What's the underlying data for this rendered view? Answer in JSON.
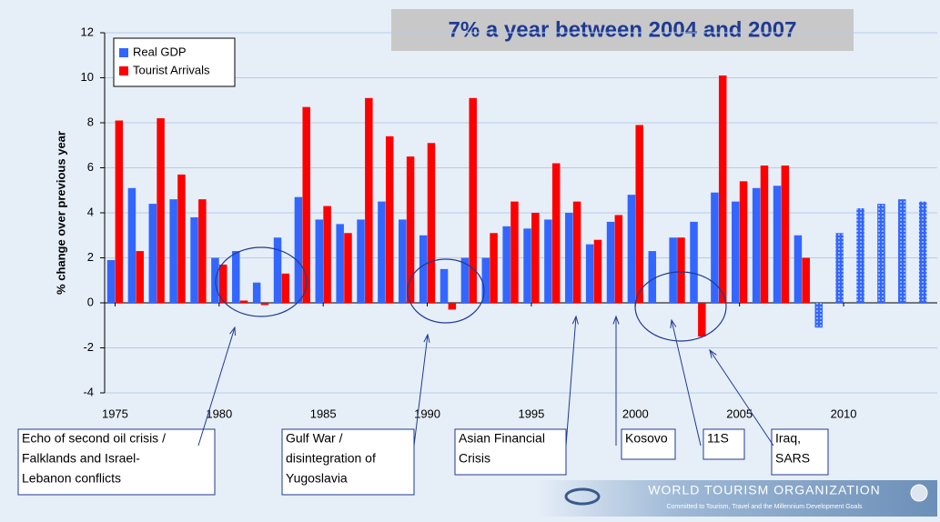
{
  "chart_data": {
    "type": "bar",
    "title": "7% a year between 2004 and 2007",
    "y_label": "% change over previous year",
    "x": [
      1975,
      1976,
      1977,
      1978,
      1979,
      1980,
      1981,
      1982,
      1983,
      1984,
      1985,
      1986,
      1987,
      1988,
      1989,
      1990,
      1991,
      1992,
      1993,
      1994,
      1995,
      1996,
      1997,
      1998,
      1999,
      2000,
      2001,
      2002,
      2003,
      2004,
      2005,
      2006,
      2007,
      2008,
      2009,
      2010,
      2011,
      2012,
      2013,
      2014
    ],
    "series": [
      {
        "name": "Real GDP",
        "color": "#3366ff",
        "dotted_from": 2009,
        "values": [
          1.9,
          5.1,
          4.4,
          4.6,
          3.8,
          2.0,
          2.3,
          0.9,
          2.9,
          4.7,
          3.7,
          3.5,
          3.7,
          4.5,
          3.7,
          3.0,
          1.5,
          2.0,
          2.0,
          3.4,
          3.3,
          3.7,
          4.0,
          2.6,
          3.6,
          4.8,
          2.3,
          2.9,
          3.6,
          4.9,
          4.5,
          5.1,
          5.2,
          3.0,
          -1.1,
          3.1,
          4.2,
          4.4,
          4.6,
          4.5
        ]
      },
      {
        "name": "Tourist Arrivals",
        "color": "#ff0000",
        "values": [
          8.1,
          2.3,
          8.2,
          5.7,
          4.6,
          1.7,
          0.1,
          -0.1,
          1.3,
          8.7,
          4.3,
          3.1,
          9.1,
          7.4,
          6.5,
          7.1,
          -0.3,
          9.1,
          3.1,
          4.5,
          4.0,
          6.2,
          4.5,
          2.8,
          3.9,
          7.9,
          0,
          2.9,
          -1.5,
          10.1,
          5.4,
          6.1,
          6.1,
          2.0,
          null,
          null,
          null,
          null,
          null,
          null
        ]
      }
    ],
    "xlim": [
      1974.5,
      2014.5
    ],
    "xticks": [
      1975,
      1980,
      1985,
      1990,
      1995,
      2000,
      2005,
      2010
    ],
    "ylim": [
      -4,
      12
    ],
    "yticks": [
      -4,
      -2,
      0,
      2,
      4,
      6,
      8,
      10,
      12
    ],
    "grid": true,
    "legend": "upper left",
    "annotations": [
      {
        "lines": [
          "Echo of second oil crisis /",
          "Falklands and Israel-",
          "Lebanon conflicts"
        ]
      },
      {
        "lines": [
          "Gulf War /",
          "disintegration of",
          "Yugoslavia"
        ]
      },
      {
        "lines": [
          "Asian Financial",
          "Crisis"
        ]
      },
      {
        "lines": [
          "Kosovo"
        ]
      },
      {
        "lines": [
          "11S"
        ]
      },
      {
        "lines": [
          "Iraq,",
          "SARS"
        ]
      }
    ]
  },
  "logo": {
    "name": "WORLD TOURISM ORGANIZATION",
    "tagline": "Committed to Tourism, Travel and the Millennium Development Goals"
  }
}
